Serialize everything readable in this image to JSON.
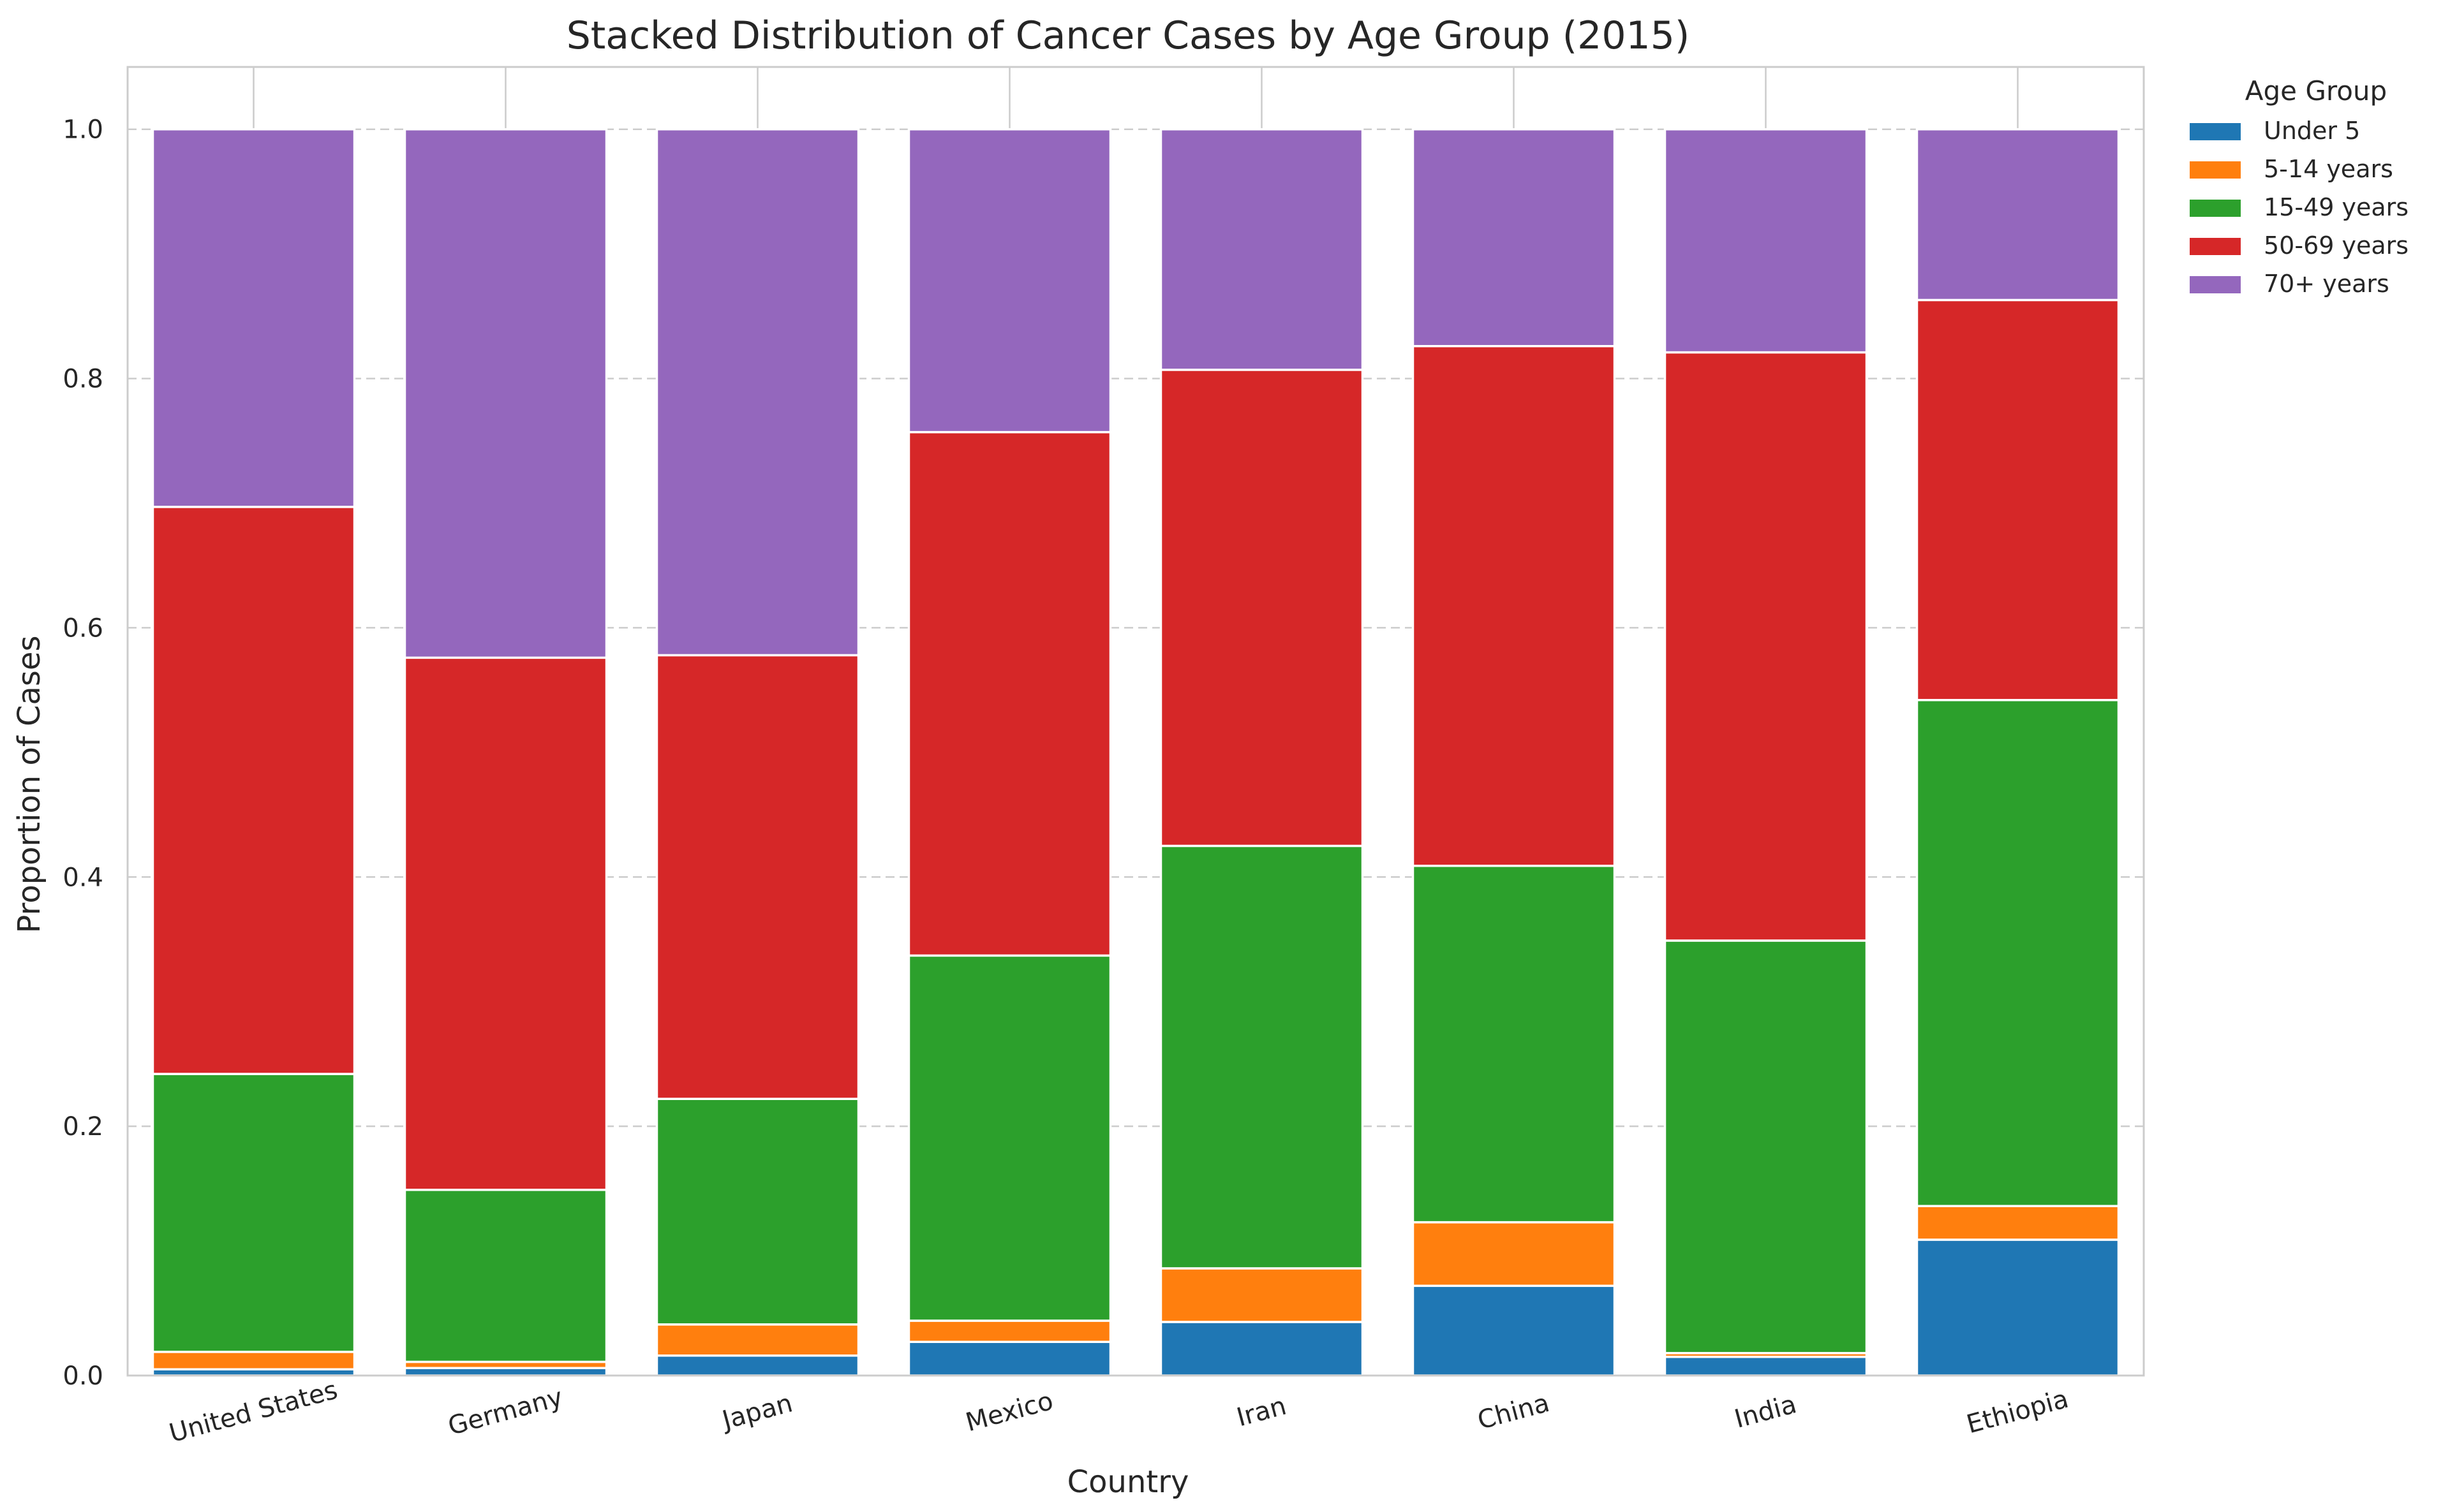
{
  "chart_data": {
    "type": "bar",
    "stacked": true,
    "title": "Stacked Distribution of Cancer Cases by Age Group (2015)",
    "xlabel": "Country",
    "ylabel": "Proportion of Cases",
    "ylim": [
      0,
      1.05
    ],
    "yticks": [
      0.0,
      0.2,
      0.4,
      0.6,
      0.8,
      1.0
    ],
    "ytick_labels": [
      "0.0",
      "0.2",
      "0.4",
      "0.6",
      "0.8",
      "1.0"
    ],
    "grid": true,
    "legend_title": "Age Group",
    "legend_position": "outside-top-right",
    "categories": [
      "United States",
      "Germany",
      "Japan",
      "Mexico",
      "Iran",
      "China",
      "India",
      "Ethiopia"
    ],
    "series": [
      {
        "name": "Under 5",
        "color": "#1f77b4",
        "values": [
          0.005,
          0.006,
          0.016,
          0.027,
          0.043,
          0.072,
          0.015,
          0.109
        ]
      },
      {
        "name": "5-14 years",
        "color": "#ff7f0e",
        "values": [
          0.014,
          0.005,
          0.025,
          0.017,
          0.043,
          0.051,
          0.003,
          0.027
        ]
      },
      {
        "name": "15-49 years",
        "color": "#2ca02c",
        "values": [
          0.223,
          0.138,
          0.181,
          0.293,
          0.339,
          0.286,
          0.331,
          0.406
        ]
      },
      {
        "name": "50-69 years",
        "color": "#d62728",
        "values": [
          0.455,
          0.427,
          0.356,
          0.42,
          0.382,
          0.417,
          0.472,
          0.321
        ]
      },
      {
        "name": "70+ years",
        "color": "#9467bd",
        "values": [
          0.303,
          0.424,
          0.422,
          0.243,
          0.193,
          0.174,
          0.179,
          0.137
        ]
      }
    ]
  }
}
